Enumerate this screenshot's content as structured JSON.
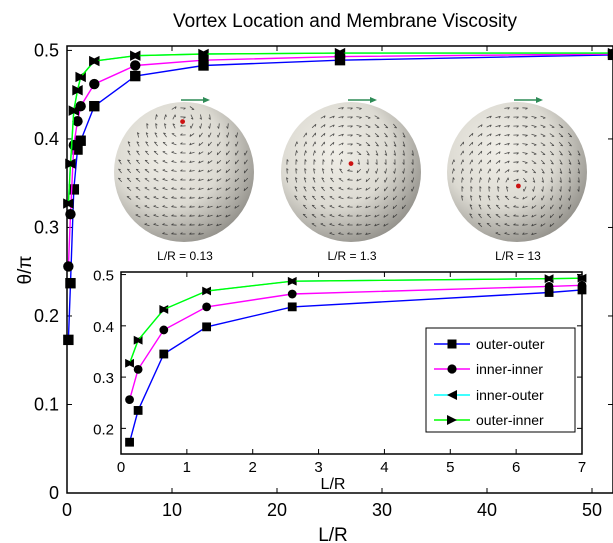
{
  "chart_data": [
    {
      "type": "line",
      "title": "Vortex Location and Membrane Viscosity",
      "xlabel": "L/R",
      "ylabel": "θ/π",
      "xlim": [
        0,
        52
      ],
      "ylim": [
        0,
        0.505
      ],
      "xticks": [
        0,
        10,
        20,
        30,
        40,
        50
      ],
      "yticks": [
        0,
        0.1,
        0.2,
        0.3,
        0.4,
        0.5
      ],
      "xtick_labels": [
        "0",
        "10",
        "20",
        "30",
        "40",
        "50"
      ],
      "ytick_labels": [
        "0",
        "0.1",
        "0.2",
        "0.3",
        "0.4",
        "0.5"
      ],
      "grid": false,
      "series": [
        {
          "key": "outer-outer",
          "color": "#0000ff",
          "marker": "square",
          "x": [
            0.13,
            0.33,
            0.65,
            1.0,
            1.3,
            2.6,
            6.5,
            13,
            26,
            52
          ],
          "y": [
            0.173,
            0.237,
            0.343,
            0.388,
            0.398,
            0.437,
            0.471,
            0.483,
            0.489,
            0.495
          ]
        },
        {
          "key": "inner-inner",
          "color": "#ff00ff",
          "marker": "circle",
          "x": [
            0.13,
            0.33,
            0.65,
            1.0,
            1.3,
            2.6,
            6.5,
            13,
            26,
            52
          ],
          "y": [
            0.256,
            0.315,
            0.393,
            0.42,
            0.437,
            0.462,
            0.483,
            0.489,
            0.493,
            0.496
          ]
        },
        {
          "key": "inner-outer",
          "color": "#00ffff",
          "marker": "triangle-left",
          "x": [
            0.13,
            0.33,
            0.65,
            1.0,
            1.3,
            2.6,
            6.5,
            13,
            26,
            52
          ],
          "y": [
            0.327,
            0.372,
            0.432,
            0.455,
            0.47,
            0.488,
            0.494,
            0.496,
            0.497,
            0.497
          ]
        },
        {
          "key": "outer-inner",
          "color": "#00ff00",
          "marker": "triangle-right",
          "x": [
            0.13,
            0.33,
            0.65,
            1.0,
            1.3,
            2.6,
            6.5,
            13,
            26,
            52
          ],
          "y": [
            0.327,
            0.372,
            0.432,
            0.455,
            0.47,
            0.488,
            0.494,
            0.496,
            0.497,
            0.497
          ]
        }
      ]
    },
    {
      "type": "line",
      "xlabel": "L/R",
      "xlim": [
        0,
        7
      ],
      "ylim": [
        0.15,
        0.505
      ],
      "xticks": [
        0,
        1,
        2,
        3,
        4,
        5,
        6,
        7
      ],
      "yticks": [
        0.2,
        0.3,
        0.4,
        0.5
      ],
      "xtick_labels": [
        "0",
        "1",
        "2",
        "3",
        "4",
        "5",
        "6",
        "7"
      ],
      "ytick_labels": [
        "0.2",
        "0.3",
        "0.4",
        "0.5"
      ],
      "grid": false,
      "legend": {
        "placement": "bottom-right",
        "entries": [
          "outer-outer",
          "inner-inner",
          "inner-outer",
          "outer-inner"
        ]
      },
      "series": [
        {
          "key": "outer-outer",
          "color": "#0000ff",
          "marker": "square",
          "x": [
            0.13,
            0.26,
            0.65,
            1.3,
            2.6,
            6.5,
            7.0
          ],
          "y": [
            0.173,
            0.235,
            0.345,
            0.398,
            0.437,
            0.465,
            0.47
          ]
        },
        {
          "key": "inner-inner",
          "color": "#ff00ff",
          "marker": "circle",
          "x": [
            0.13,
            0.26,
            0.65,
            1.3,
            2.6,
            6.5,
            7.0
          ],
          "y": [
            0.256,
            0.315,
            0.392,
            0.437,
            0.462,
            0.477,
            0.479
          ]
        },
        {
          "key": "inner-outer",
          "color": "#00ffff",
          "marker": "triangle-left",
          "x": [
            0.13,
            0.26,
            0.65,
            1.3,
            2.6,
            6.5,
            7.0
          ],
          "y": [
            0.327,
            0.372,
            0.432,
            0.468,
            0.487,
            0.492,
            0.493
          ]
        },
        {
          "key": "outer-inner",
          "color": "#00ff00",
          "marker": "triangle-right",
          "x": [
            0.13,
            0.26,
            0.65,
            1.3,
            2.6,
            6.5,
            7.0
          ],
          "y": [
            0.327,
            0.372,
            0.432,
            0.468,
            0.487,
            0.492,
            0.493
          ]
        }
      ]
    }
  ],
  "spheres": [
    {
      "label": "L/R = 0.13",
      "vortex": [
        -0.02,
        -0.72
      ]
    },
    {
      "label": "L/R = 1.3",
      "vortex": [
        0.0,
        -0.12
      ]
    },
    {
      "label": "L/R = 13",
      "vortex": [
        0.02,
        0.2
      ]
    }
  ],
  "colors": {
    "sphere_fill": "#dcdad2",
    "sphere_shade": "#8e8c86",
    "arrow": "#2b2b2b",
    "vortex_dot": "#cc1111",
    "velocity_arrow": "#2e8b57"
  }
}
